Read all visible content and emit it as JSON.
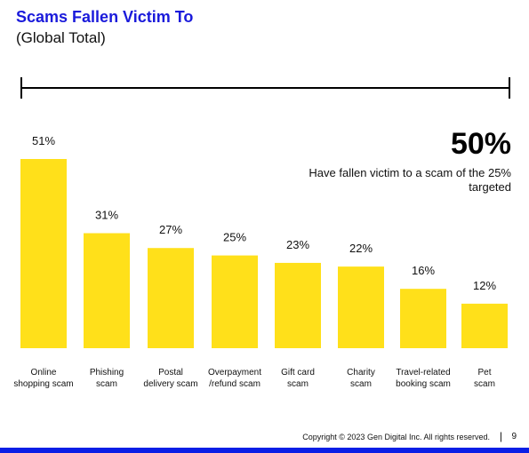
{
  "header": {
    "title": "Scams Fallen Victim To",
    "subtitle": "(Global Total)"
  },
  "callout": {
    "value": "50%",
    "text": "Have fallen victim to a scam of the 25% targeted"
  },
  "footer": {
    "copyright": "Copyright © 2023 Gen Digital Inc. All rights reserved.",
    "separator": "|",
    "page_number": "9"
  },
  "colors": {
    "title": "#1a1adb",
    "bar": "#ffe01a",
    "bottom_bar": "#0a1ee6"
  },
  "chart_data": {
    "type": "bar",
    "title": "Scams Fallen Victim To",
    "subtitle": "(Global Total)",
    "categories": [
      [
        "Online",
        "shopping scam"
      ],
      [
        "Phishing",
        "scam"
      ],
      [
        "Postal",
        "delivery scam"
      ],
      [
        "Overpayment",
        "/refund scam"
      ],
      [
        "Gift card",
        "scam"
      ],
      [
        "Charity",
        "scam"
      ],
      [
        "Travel-related",
        "booking scam"
      ],
      [
        "Pet",
        "scam"
      ]
    ],
    "values": [
      51,
      31,
      27,
      25,
      23,
      22,
      16,
      12
    ],
    "value_labels": [
      "51%",
      "31%",
      "27%",
      "25%",
      "23%",
      "22%",
      "16%",
      "12%"
    ],
    "ylim": [
      0,
      51
    ],
    "grid": false,
    "legend": "none"
  }
}
